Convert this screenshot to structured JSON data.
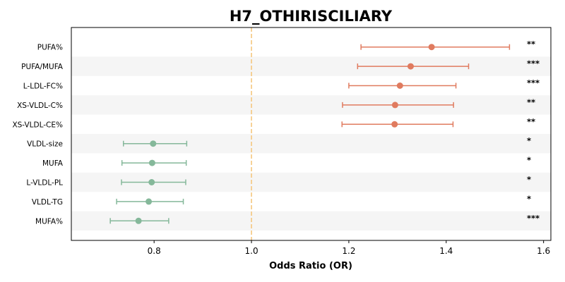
{
  "chart_data": {
    "type": "scatter",
    "subtype": "forest-plot",
    "title": "H7_OTHIRISCILIARY",
    "xlabel": "Odds Ratio (OR)",
    "ylabel": "",
    "xlim": [
      0.63,
      1.615
    ],
    "xticks": [
      0.8,
      1.0,
      1.2,
      1.4,
      1.6
    ],
    "xtick_labels": [
      "0.8",
      "1.0",
      "1.2",
      "1.4",
      "1.6"
    ],
    "reference_line": 1.0,
    "grid": false,
    "alternating_row_bands": true,
    "colors": {
      "increased_risk": "#e07b5f",
      "decreased_risk": "#85b89a",
      "reference_line": "#f5c77e",
      "band": "#f5f5f5"
    },
    "rows": [
      {
        "label": "PUFA%",
        "or": 1.37,
        "ci_low": 1.225,
        "ci_high": 1.53,
        "sig": "**",
        "direction": "increased_risk"
      },
      {
        "label": "PUFA/MUFA",
        "or": 1.327,
        "ci_low": 1.218,
        "ci_high": 1.446,
        "sig": "***",
        "direction": "increased_risk"
      },
      {
        "label": "L-LDL-FC%",
        "or": 1.305,
        "ci_low": 1.2,
        "ci_high": 1.42,
        "sig": "***",
        "direction": "increased_risk"
      },
      {
        "label": "XS-VLDL-C%",
        "or": 1.295,
        "ci_low": 1.187,
        "ci_high": 1.415,
        "sig": "**",
        "direction": "increased_risk"
      },
      {
        "label": "XS-VLDL-CE%",
        "or": 1.294,
        "ci_low": 1.186,
        "ci_high": 1.414,
        "sig": "**",
        "direction": "increased_risk"
      },
      {
        "label": "VLDL-size",
        "or": 0.798,
        "ci_low": 0.737,
        "ci_high": 0.867,
        "sig": "*",
        "direction": "decreased_risk"
      },
      {
        "label": "MUFA",
        "or": 0.796,
        "ci_low": 0.734,
        "ci_high": 0.866,
        "sig": "*",
        "direction": "decreased_risk"
      },
      {
        "label": "L-VLDL-PL",
        "or": 0.795,
        "ci_low": 0.733,
        "ci_high": 0.865,
        "sig": "*",
        "direction": "decreased_risk"
      },
      {
        "label": "VLDL-TG",
        "or": 0.789,
        "ci_low": 0.723,
        "ci_high": 0.86,
        "sig": "*",
        "direction": "decreased_risk"
      },
      {
        "label": "MUFA%",
        "or": 0.768,
        "ci_low": 0.71,
        "ci_high": 0.83,
        "sig": "***",
        "direction": "decreased_risk"
      }
    ]
  }
}
